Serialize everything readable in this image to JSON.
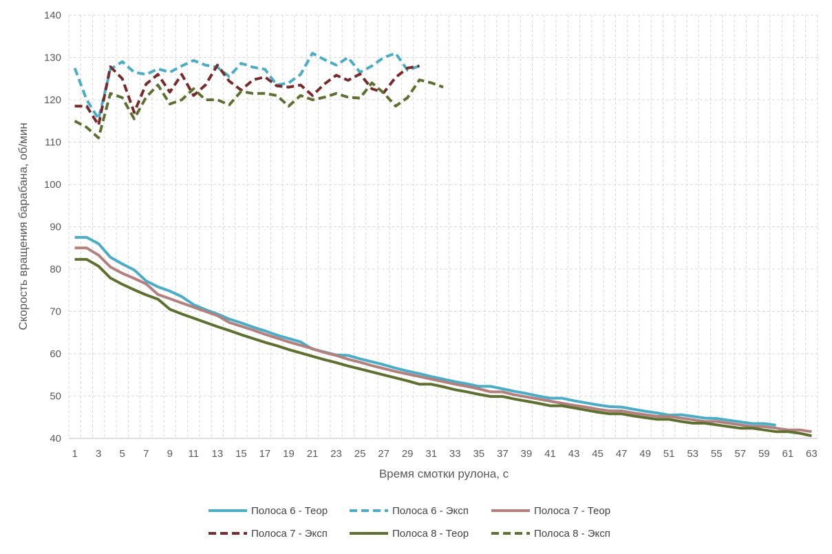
{
  "chart_data": {
    "type": "line",
    "title": "",
    "xlabel": "Время смотки рулона, с",
    "ylabel": "Скорость вращения барабана, об/мин",
    "xlim": [
      1,
      63
    ],
    "ylim": [
      40,
      140
    ],
    "yticks": [
      40,
      50,
      60,
      70,
      80,
      90,
      100,
      110,
      120,
      130,
      140
    ],
    "xtick_labels": [
      "1",
      "3",
      "5",
      "7",
      "9",
      "11",
      "13",
      "15",
      "17",
      "19",
      "21",
      "23",
      "25",
      "27",
      "29",
      "31",
      "33",
      "35",
      "37",
      "39",
      "41",
      "43",
      "45",
      "47",
      "49",
      "51",
      "53",
      "55",
      "57",
      "59",
      "61",
      "63"
    ],
    "grid": true,
    "legend_position": "bottom",
    "series": [
      {
        "name": "Полоса 6 - Теор",
        "color": "#4bacc6",
        "dash": "solid",
        "x": [
          1,
          2,
          3,
          4,
          5,
          6,
          7,
          8,
          9,
          10,
          11,
          12,
          13,
          14,
          15,
          16,
          17,
          18,
          19,
          20,
          21,
          22,
          23,
          24,
          25,
          26,
          27,
          28,
          29,
          30,
          31,
          32,
          33,
          34,
          35,
          36,
          37,
          38,
          39,
          40,
          41,
          42,
          43,
          44,
          45,
          46,
          47,
          48,
          49,
          50,
          51,
          52,
          53,
          54,
          55,
          56,
          57,
          58,
          59,
          60
        ],
        "values": [
          87.5,
          87.5,
          86,
          82.8,
          81.2,
          79.8,
          77.2,
          75.8,
          74.8,
          73.5,
          71.6,
          70.4,
          69.4,
          68.2,
          67.3,
          66.3,
          65.4,
          64.4,
          63.6,
          62.8,
          61.1,
          60.4,
          59.7,
          59.6,
          58.8,
          58.1,
          57.4,
          56.6,
          55.9,
          55.3,
          54.6,
          54,
          53.4,
          52.9,
          52.3,
          52.3,
          51.7,
          51.1,
          50.6,
          50,
          49.5,
          49.5,
          48.9,
          48.4,
          47.9,
          47.5,
          47.4,
          46.9,
          46.4,
          46,
          45.5,
          45.6,
          45.2,
          44.8,
          44.7,
          44.3,
          43.9,
          43.5,
          43.5,
          43.1
        ]
      },
      {
        "name": "Полоса 6 - Эксп",
        "color": "#4bacc6",
        "dash": "dashed",
        "x": [
          1,
          2,
          3,
          4,
          5,
          6,
          7,
          8,
          9,
          10,
          11,
          12,
          13,
          14,
          15,
          16,
          17,
          18,
          19,
          20,
          21,
          22,
          23,
          24,
          25,
          26,
          27,
          28,
          29,
          30
        ],
        "values": [
          127.5,
          120,
          115.5,
          127.2,
          129,
          126.5,
          126,
          127.3,
          126.5,
          128,
          129.3,
          128.2,
          127.7,
          125.5,
          128.6,
          127.7,
          127.2,
          123.5,
          124,
          126,
          131,
          129.5,
          128.2,
          130,
          126.5,
          128,
          130,
          131,
          127,
          128
        ]
      },
      {
        "name": "Полоса 7 - Теор",
        "color": "#b3807d",
        "dash": "solid",
        "x": [
          1,
          2,
          3,
          4,
          5,
          6,
          7,
          8,
          9,
          10,
          11,
          12,
          13,
          14,
          15,
          16,
          17,
          18,
          19,
          20,
          21,
          22,
          23,
          24,
          25,
          26,
          27,
          28,
          29,
          30,
          31,
          32,
          33,
          34,
          35,
          36,
          37,
          38,
          39,
          40,
          41,
          42,
          43,
          44,
          45,
          46,
          47,
          48,
          49,
          50,
          51,
          52,
          53,
          54,
          55,
          56,
          57,
          58,
          59,
          60,
          61,
          62,
          63
        ],
        "values": [
          85,
          85,
          83.3,
          80.5,
          79,
          77.8,
          76.5,
          74,
          73,
          72,
          71,
          70,
          69,
          67.4,
          66.5,
          65.6,
          64.6,
          63.7,
          62.8,
          62,
          61.2,
          60.3,
          59.6,
          58.7,
          58,
          57.2,
          56.5,
          55.8,
          55.2,
          54.6,
          54,
          53.4,
          52.8,
          52.3,
          51.7,
          51,
          51,
          50.3,
          49.8,
          49.3,
          48.8,
          48.3,
          47.8,
          47.4,
          46.9,
          46.5,
          46.5,
          46,
          45.6,
          45.2,
          45.2,
          44.8,
          44.4,
          44,
          44,
          43.6,
          43.2,
          42.8,
          42.8,
          42.4,
          42,
          42,
          41.6
        ]
      },
      {
        "name": "Полоса 7 - Эксп",
        "color": "#772b2b",
        "dash": "dashed",
        "x": [
          1,
          2,
          3,
          4,
          5,
          6,
          7,
          8,
          9,
          10,
          11,
          12,
          13,
          14,
          15,
          16,
          17,
          18,
          19,
          20,
          21,
          22,
          23,
          24,
          25,
          26,
          27,
          28,
          29,
          30
        ],
        "values": [
          118.5,
          118.5,
          114,
          127.8,
          125,
          117,
          123.7,
          126,
          121.8,
          126,
          121,
          123.5,
          128.2,
          124.4,
          122.3,
          124.7,
          125.4,
          123.3,
          123,
          123.5,
          121,
          123.7,
          125.8,
          124.6,
          126.1,
          122.6,
          121.7,
          125.3,
          127.5,
          128
        ]
      },
      {
        "name": "Полоса 8 - Теор",
        "color": "#5d7030",
        "dash": "solid",
        "x": [
          1,
          2,
          3,
          4,
          5,
          6,
          7,
          8,
          9,
          10,
          11,
          12,
          13,
          14,
          15,
          16,
          17,
          18,
          19,
          20,
          21,
          22,
          23,
          24,
          25,
          26,
          27,
          28,
          29,
          30,
          31,
          32,
          33,
          34,
          35,
          36,
          37,
          38,
          39,
          40,
          41,
          42,
          43,
          44,
          45,
          46,
          47,
          48,
          49,
          50,
          51,
          52,
          53,
          54,
          55,
          56,
          57,
          58,
          59,
          60,
          61,
          62,
          63
        ],
        "values": [
          82.3,
          82.3,
          80.7,
          77.9,
          76.4,
          75.1,
          73.9,
          72.9,
          70.5,
          69.4,
          68.4,
          67.4,
          66.4,
          65.5,
          64.5,
          63.6,
          62.7,
          61.9,
          61,
          60.2,
          59.4,
          58.6,
          57.9,
          57.1,
          56.4,
          55.7,
          55,
          54.3,
          53.6,
          52.8,
          52.8,
          52.2,
          51.5,
          51,
          50.4,
          49.9,
          49.9,
          49.3,
          48.8,
          48.3,
          47.7,
          47.7,
          47.2,
          46.7,
          46.2,
          45.8,
          45.8,
          45.3,
          44.9,
          44.5,
          44.5,
          44,
          43.6,
          43.6,
          43.2,
          42.8,
          42.4,
          42.4,
          42,
          41.6,
          41.6,
          41.2,
          40.6
        ]
      },
      {
        "name": "Полоса 8 - Эксп",
        "color": "#5d7030",
        "dash": "dashed",
        "x": [
          1,
          2,
          3,
          4,
          5,
          6,
          7,
          8,
          9,
          10,
          11,
          12,
          13,
          14,
          15,
          16,
          17,
          18,
          19,
          20,
          21,
          22,
          23,
          24,
          25,
          26,
          27,
          28,
          29,
          30,
          31,
          32
        ],
        "values": [
          115,
          113.5,
          111,
          121.5,
          120.5,
          115.5,
          120.6,
          123.5,
          119,
          120,
          122.6,
          120,
          120,
          118.8,
          122,
          121.5,
          121.5,
          121,
          118.5,
          121,
          120,
          120.6,
          121.5,
          120.6,
          120.4,
          124,
          121.6,
          118.5,
          120.5,
          124.7,
          124,
          123
        ]
      }
    ]
  }
}
